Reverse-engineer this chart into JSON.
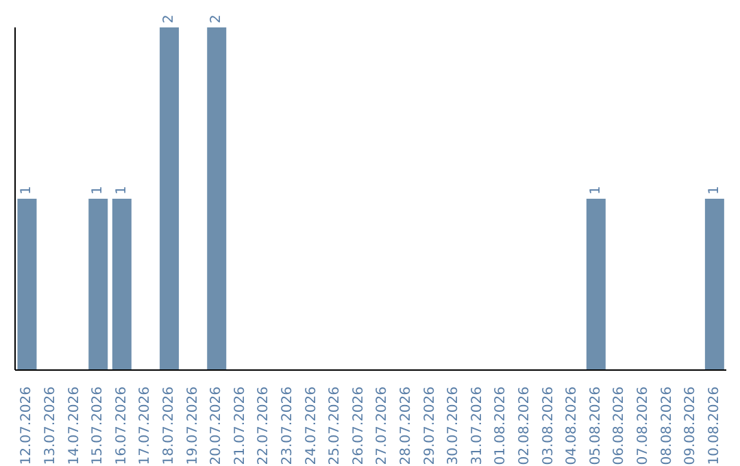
{
  "chart_data": {
    "type": "bar",
    "categories": [
      "12.07.2026",
      "13.07.2026",
      "14.07.2026",
      "15.07.2026",
      "16.07.2026",
      "17.07.2026",
      "18.07.2026",
      "19.07.2026",
      "20.07.2026",
      "21.07.2026",
      "22.07.2026",
      "23.07.2026",
      "24.07.2026",
      "25.07.2026",
      "26.07.2026",
      "27.07.2026",
      "28.07.2026",
      "29.07.2026",
      "30.07.2026",
      "31.07.2026",
      "01.08.2026",
      "02.08.2026",
      "03.08.2026",
      "04.08.2026",
      "05.08.2026",
      "06.08.2026",
      "07.08.2026",
      "08.08.2026",
      "09.08.2026",
      "10.08.2026"
    ],
    "values": [
      1,
      0,
      0,
      1,
      1,
      0,
      2,
      0,
      2,
      0,
      0,
      0,
      0,
      0,
      0,
      0,
      0,
      0,
      0,
      0,
      0,
      0,
      0,
      0,
      1,
      0,
      0,
      0,
      0,
      1
    ],
    "color": "#6e8fad",
    "value_labels": [
      "1",
      null,
      null,
      "1",
      "1",
      null,
      "2",
      null,
      "2",
      null,
      null,
      null,
      null,
      null,
      null,
      null,
      null,
      null,
      null,
      null,
      null,
      null,
      null,
      null,
      "1",
      null,
      null,
      null,
      null,
      "1"
    ]
  }
}
